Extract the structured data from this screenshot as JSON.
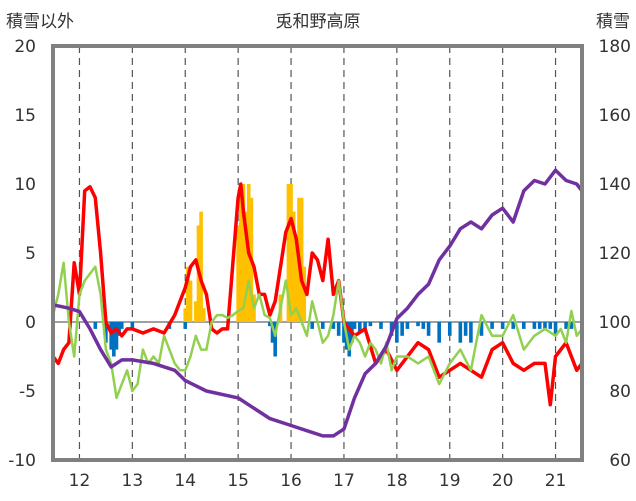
{
  "chart_data": {
    "type": "bar+line",
    "title": "兎和野高原",
    "left_axis_label": "積雪以外",
    "right_axis_label": "積雪",
    "x_ticks": [
      "12",
      "13",
      "14",
      "15",
      "16",
      "17",
      "18",
      "19",
      "20",
      "21"
    ],
    "xlim": [
      11.5,
      21.5
    ],
    "y_left": {
      "lim": [
        -10,
        20
      ],
      "ticks": [
        "20",
        "15",
        "10",
        "5",
        "0",
        "-5",
        "-10"
      ]
    },
    "y_right": {
      "lim": [
        60,
        180
      ],
      "ticks": [
        "180",
        "160",
        "140",
        "120",
        "100",
        "80",
        "60"
      ]
    },
    "grid": "vertical dashed",
    "colors": {
      "red": "#ff0000",
      "green": "#92d050",
      "purple": "#7030a0",
      "orange_bar": "#ffc000",
      "blue_bar": "#0070c0",
      "frame": "#808080"
    },
    "series": [
      {
        "color": "red",
        "x": [
          11.5,
          11.6,
          11.7,
          11.8,
          11.9,
          12.0,
          12.1,
          12.2,
          12.3,
          12.4,
          12.5,
          12.6,
          12.7,
          12.8,
          12.9,
          13.0,
          13.2,
          13.4,
          13.6,
          13.8,
          14.0,
          14.1,
          14.2,
          14.3,
          14.4,
          14.5,
          14.6,
          14.7,
          14.8,
          15.0,
          15.05,
          15.1,
          15.2,
          15.3,
          15.4,
          15.5,
          15.6,
          15.7,
          15.8,
          15.9,
          16.0,
          16.1,
          16.2,
          16.3,
          16.4,
          16.5,
          16.6,
          16.7,
          16.8,
          16.9,
          17.0,
          17.2,
          17.4,
          17.6,
          17.8,
          18.0,
          18.2,
          18.4,
          18.6,
          18.8,
          19.0,
          19.2,
          19.4,
          19.6,
          19.8,
          20.0,
          20.2,
          20.4,
          20.6,
          20.8,
          20.9,
          21.0,
          21.2,
          21.4,
          21.5
        ],
        "y": [
          -2.5,
          -3,
          -2,
          -1.5,
          4.3,
          2,
          9.5,
          9.8,
          9,
          5,
          0,
          -0.8,
          -0.5,
          -1,
          -0.5,
          -0.5,
          -0.8,
          -0.5,
          -0.8,
          0.5,
          2.5,
          4,
          4.5,
          3,
          2,
          -0.5,
          -0.8,
          -0.5,
          -0.5,
          9,
          10,
          8,
          5,
          4,
          2,
          2,
          0.5,
          1.5,
          4,
          6.5,
          7.5,
          6,
          3,
          2,
          5,
          4.5,
          3,
          6,
          2,
          3,
          0,
          -1,
          -0.5,
          -3,
          -2,
          -3.5,
          -2.5,
          -1.5,
          -2,
          -4,
          -3.5,
          -3,
          -3.5,
          -4,
          -2,
          -1.5,
          -3,
          -3.5,
          -3,
          -3,
          -6,
          -2.5,
          -1.5,
          -3.5,
          -3
        ]
      },
      {
        "color": "green",
        "x": [
          11.5,
          11.6,
          11.7,
          11.8,
          11.9,
          12.0,
          12.1,
          12.2,
          12.3,
          12.4,
          12.5,
          12.6,
          12.7,
          12.8,
          12.9,
          13.0,
          13.1,
          13.2,
          13.3,
          13.4,
          13.5,
          13.6,
          13.7,
          13.8,
          13.9,
          14.0,
          14.1,
          14.2,
          14.3,
          14.4,
          14.5,
          14.6,
          14.7,
          14.8,
          14.9,
          15.0,
          15.1,
          15.2,
          15.3,
          15.4,
          15.5,
          15.6,
          15.7,
          15.8,
          15.9,
          16.0,
          16.1,
          16.2,
          16.3,
          16.4,
          16.5,
          16.6,
          16.7,
          16.8,
          16.9,
          17.0,
          17.1,
          17.2,
          17.3,
          17.4,
          17.5,
          17.6,
          17.7,
          17.8,
          17.9,
          18.0,
          18.2,
          18.4,
          18.6,
          18.8,
          19.0,
          19.2,
          19.4,
          19.6,
          19.8,
          20.0,
          20.2,
          20.4,
          20.6,
          20.8,
          21.0,
          21.1,
          21.2,
          21.3,
          21.4,
          21.5
        ],
        "y": [
          0.5,
          2,
          4.3,
          0,
          -2.5,
          2,
          3,
          3.5,
          4,
          2,
          -2,
          -3,
          -5.5,
          -4.5,
          -3.5,
          -5,
          -4.5,
          -2,
          -3,
          -2.5,
          -3,
          -1,
          -2,
          -3,
          -3.5,
          -3.5,
          -2.5,
          -1,
          -2,
          -2,
          0,
          0.5,
          0.5,
          0.3,
          0.5,
          0.8,
          1,
          3,
          1,
          2,
          0.5,
          0.3,
          -1,
          1,
          3,
          0.5,
          1,
          0,
          -1,
          1.5,
          0,
          -1.5,
          -1,
          0.5,
          3,
          0,
          -2,
          -1,
          -1.5,
          -2.5,
          -1.5,
          -2,
          -3,
          -1.5,
          -3.5,
          -2.5,
          -2.5,
          -3,
          -2.5,
          -4.5,
          -3,
          -2,
          -3.5,
          0.5,
          -1,
          -1,
          0.5,
          -2,
          -1,
          -0.5,
          -1,
          -0.5,
          -1.5,
          0.8,
          -1,
          -0.5
        ]
      },
      {
        "color": "purple",
        "axis": "right",
        "x": [
          11.5,
          11.8,
          12.0,
          12.2,
          12.4,
          12.6,
          12.8,
          13.0,
          13.4,
          13.8,
          14.0,
          14.4,
          15.0,
          15.2,
          15.6,
          16.0,
          16.4,
          16.6,
          16.8,
          17.0,
          17.2,
          17.4,
          17.6,
          17.8,
          18.0,
          18.2,
          18.4,
          18.6,
          18.8,
          19.0,
          19.2,
          19.4,
          19.6,
          19.8,
          20.0,
          20.2,
          20.4,
          20.6,
          20.8,
          21.0,
          21.2,
          21.4,
          21.5
        ],
        "y": [
          105,
          104,
          103,
          98,
          92,
          87,
          89,
          89,
          88,
          86,
          83,
          80,
          78,
          76,
          72,
          70,
          68,
          67,
          67,
          69,
          78,
          85,
          88,
          93,
          101,
          104,
          108,
          111,
          118,
          122,
          127,
          129,
          127,
          131,
          133,
          129,
          138,
          141,
          140,
          144,
          141,
          140,
          138
        ]
      }
    ],
    "bars_orange": {
      "color": "orange_bar",
      "x": [
        14.0,
        14.05,
        14.1,
        14.2,
        14.25,
        14.3,
        14.35,
        15.0,
        15.05,
        15.1,
        15.15,
        15.2,
        15.25,
        15.3,
        15.8,
        15.95,
        16.0,
        16.05,
        16.1,
        16.15,
        16.2,
        16.25
      ],
      "y": [
        1,
        4,
        3,
        1.5,
        7,
        8,
        1,
        7,
        10,
        10,
        8,
        10,
        9,
        2,
        2,
        10,
        10,
        8,
        6,
        9,
        9,
        4
      ]
    },
    "bars_blue": {
      "color": "blue_bar",
      "x": [
        12.3,
        12.5,
        12.6,
        12.65,
        12.7,
        12.75,
        12.8,
        13.0,
        13.7,
        14.0,
        15.6,
        15.65,
        15.7,
        16.4,
        16.6,
        16.8,
        16.9,
        17.0,
        17.05,
        17.1,
        17.15,
        17.2,
        17.3,
        17.4,
        17.5,
        17.7,
        17.9,
        18.0,
        18.1,
        18.2,
        18.4,
        18.5,
        18.6,
        18.8,
        19.0,
        19.2,
        19.3,
        19.4,
        19.6,
        19.8,
        20.0,
        20.2,
        20.4,
        20.6,
        20.7,
        20.8,
        20.9,
        21.0,
        21.2,
        21.3
      ],
      "y": [
        -0.5,
        -1.5,
        -2,
        -2.5,
        -2,
        -1,
        -0.5,
        -0.5,
        -0.5,
        -0.5,
        -0.3,
        -1.5,
        -2.5,
        -0.5,
        -0.5,
        -0.5,
        -1,
        -1.5,
        -2,
        -2.5,
        -1.5,
        -0.5,
        -0.8,
        -0.5,
        -0.3,
        -0.5,
        -1,
        -1.5,
        -1,
        -0.5,
        -0.3,
        -0.5,
        -1,
        -1.5,
        -1,
        -1.5,
        -1,
        -1.5,
        -1,
        -0.5,
        -0.5,
        -0.5,
        -0.5,
        -0.5,
        -0.5,
        -0.5,
        -0.5,
        -1,
        -0.5,
        -0.5
      ]
    }
  }
}
